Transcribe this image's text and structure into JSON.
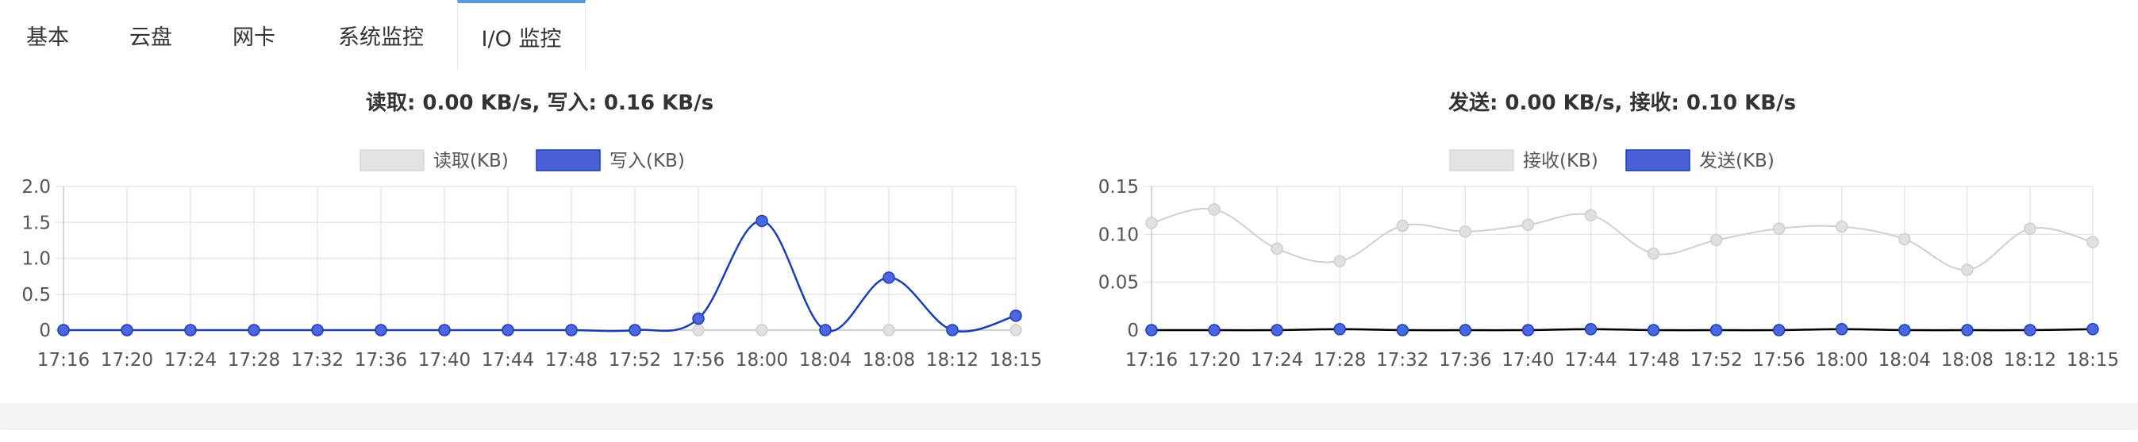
{
  "tabs": [
    {
      "label": "基本",
      "active": false
    },
    {
      "label": "云盘",
      "active": false
    },
    {
      "label": "网卡",
      "active": false
    },
    {
      "label": "系统监控",
      "active": false
    },
    {
      "label": "I/O 监控",
      "active": true
    }
  ],
  "chart_data": [
    {
      "type": "line",
      "title": "读取: 0.00 KB/s, 写入: 0.16 KB/s",
      "categories": [
        "17:16",
        "17:20",
        "17:24",
        "17:28",
        "17:32",
        "17:36",
        "17:40",
        "17:44",
        "17:48",
        "17:52",
        "17:56",
        "18:00",
        "18:04",
        "18:08",
        "18:12",
        "18:15"
      ],
      "series": [
        {
          "name": "读取(KB)",
          "color": "#e3e3e3",
          "stroke": "#d0d0d0",
          "values": [
            0,
            0,
            0,
            0,
            0,
            0,
            0,
            0,
            0,
            0,
            0,
            0,
            0,
            0,
            0,
            0
          ]
        },
        {
          "name": "写入(KB)",
          "color": "#4b5fd6",
          "stroke": "#1a3fb5",
          "values": [
            0,
            0,
            0,
            0,
            0,
            0,
            0,
            0,
            0,
            0,
            0.16,
            1.52,
            0,
            0.73,
            0,
            0.2
          ]
        }
      ],
      "ylim": [
        0,
        2.0
      ],
      "yticks": [
        "0",
        "0.5",
        "1.0",
        "1.5",
        "2.0"
      ],
      "ytick_values": [
        0,
        0.5,
        1.0,
        1.5,
        2.0
      ],
      "grid": true,
      "legend": "top-center"
    },
    {
      "type": "line",
      "title": "发送: 0.00 KB/s, 接收: 0.10 KB/s",
      "categories": [
        "17:16",
        "17:20",
        "17:24",
        "17:28",
        "17:32",
        "17:36",
        "17:40",
        "17:44",
        "17:48",
        "17:52",
        "17:56",
        "18:00",
        "18:04",
        "18:08",
        "18:12",
        "18:15"
      ],
      "series": [
        {
          "name": "接收(KB)",
          "color": "#e3e3e3",
          "stroke": "#cfcfcf",
          "values": [
            0.112,
            0.126,
            0.085,
            0.072,
            0.109,
            0.103,
            0.11,
            0.12,
            0.08,
            0.094,
            0.106,
            0.108,
            0.095,
            0.063,
            0.106,
            0.092
          ]
        },
        {
          "name": "发送(KB)",
          "color": "#4b5fd6",
          "stroke": "#000000",
          "values": [
            0,
            0,
            0,
            0.001,
            0,
            0,
            0,
            0.001,
            0,
            0,
            0,
            0.001,
            0,
            0,
            0,
            0.001
          ]
        }
      ],
      "ylim": [
        0,
        0.15
      ],
      "yticks": [
        "0",
        "0.05",
        "0.10",
        "0.15"
      ],
      "ytick_values": [
        0,
        0.05,
        0.1,
        0.15
      ],
      "grid": true,
      "legend": "top-center"
    }
  ]
}
